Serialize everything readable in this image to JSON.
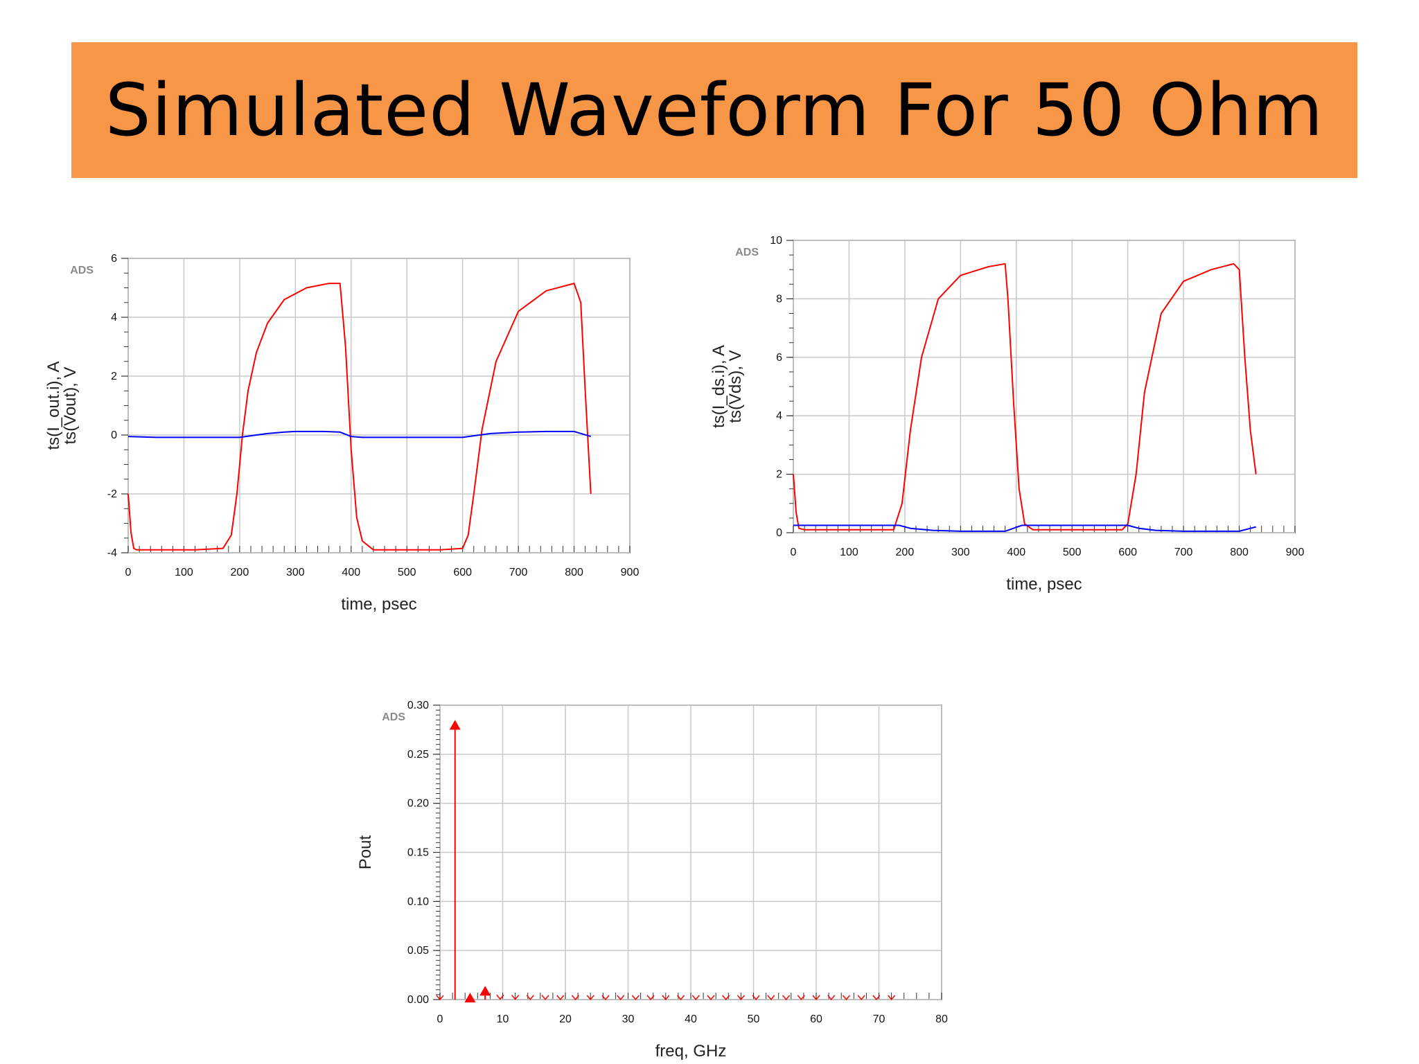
{
  "slide": {
    "title": "Simulated Waveform For 50 Ohm"
  },
  "colors": {
    "banner": "#f79646",
    "red": "#ff0000",
    "blue": "#0000ff",
    "grid": "#c8c8c8"
  },
  "chart_data": [
    {
      "type": "line",
      "ads_mark": "ADS",
      "xlabel": "time, psec",
      "ylabels": [
        {
          "text": "ts(I_out.i), A",
          "color": "#0000ff"
        },
        {
          "text": "ts(Vout), V",
          "color": "#ff0000"
        }
      ],
      "xlim": [
        0,
        900
      ],
      "ylim": [
        -4,
        6
      ],
      "xticks": [
        0,
        100,
        200,
        300,
        400,
        500,
        600,
        700,
        800,
        900
      ],
      "yticks": [
        -4,
        -2,
        0,
        2,
        4,
        6
      ],
      "series": [
        {
          "color": "#ff0000",
          "x": [
            0,
            5,
            10,
            15,
            25,
            60,
            120,
            170,
            185,
            195,
            205,
            215,
            230,
            250,
            280,
            320,
            360,
            380,
            390,
            400,
            410,
            420,
            440,
            500,
            560,
            600,
            610,
            620,
            635,
            660,
            700,
            750,
            800,
            812,
            820,
            830
          ],
          "y": [
            -2.0,
            -3.3,
            -3.85,
            -3.9,
            -3.9,
            -3.9,
            -3.9,
            -3.85,
            -3.4,
            -2.0,
            0.0,
            1.5,
            2.8,
            3.8,
            4.6,
            5.0,
            5.15,
            5.15,
            3.0,
            -0.5,
            -2.8,
            -3.6,
            -3.9,
            -3.9,
            -3.9,
            -3.85,
            -3.4,
            -2.0,
            0.2,
            2.5,
            4.2,
            4.9,
            5.15,
            4.5,
            1.5,
            -2.0
          ]
        },
        {
          "color": "#0000ff",
          "x": [
            0,
            50,
            100,
            150,
            200,
            230,
            250,
            280,
            300,
            350,
            380,
            400,
            420,
            450,
            500,
            550,
            600,
            630,
            650,
            700,
            750,
            800,
            830
          ],
          "y": [
            -0.05,
            -0.08,
            -0.08,
            -0.08,
            -0.08,
            0.0,
            0.05,
            0.1,
            0.12,
            0.12,
            0.1,
            -0.05,
            -0.08,
            -0.08,
            -0.08,
            -0.08,
            -0.08,
            0.0,
            0.05,
            0.1,
            0.12,
            0.12,
            -0.05
          ]
        }
      ]
    },
    {
      "type": "line",
      "ads_mark": "ADS",
      "xlabel": "time, psec",
      "ylabels": [
        {
          "text": "ts(I_ds.i), A",
          "color": "#0000ff"
        },
        {
          "text": "ts(Vds), V",
          "color": "#ff0000"
        }
      ],
      "xlim": [
        0,
        900
      ],
      "ylim": [
        0,
        10
      ],
      "xticks": [
        0,
        100,
        200,
        300,
        400,
        500,
        600,
        700,
        800,
        900
      ],
      "yticks": [
        0,
        2,
        4,
        6,
        8,
        10
      ],
      "series": [
        {
          "color": "#ff0000",
          "x": [
            0,
            5,
            10,
            20,
            100,
            180,
            195,
            210,
            230,
            260,
            300,
            350,
            380,
            385,
            395,
            405,
            415,
            430,
            500,
            590,
            600,
            615,
            630,
            660,
            700,
            750,
            790,
            800,
            810,
            820,
            830
          ],
          "y": [
            2.0,
            0.7,
            0.15,
            0.1,
            0.1,
            0.1,
            1.0,
            3.5,
            6.0,
            8.0,
            8.8,
            9.1,
            9.2,
            8.0,
            4.5,
            1.5,
            0.3,
            0.1,
            0.1,
            0.1,
            0.3,
            2.0,
            4.8,
            7.5,
            8.6,
            9.0,
            9.2,
            9.0,
            6.0,
            3.5,
            2.0
          ]
        },
        {
          "color": "#0000ff",
          "x": [
            0,
            10,
            50,
            100,
            150,
            190,
            210,
            250,
            300,
            350,
            380,
            410,
            450,
            500,
            550,
            600,
            620,
            650,
            700,
            750,
            800,
            830
          ],
          "y": [
            0.25,
            0.25,
            0.25,
            0.25,
            0.25,
            0.25,
            0.15,
            0.08,
            0.05,
            0.05,
            0.05,
            0.25,
            0.25,
            0.25,
            0.25,
            0.25,
            0.15,
            0.08,
            0.05,
            0.05,
            0.05,
            0.2
          ]
        }
      ]
    },
    {
      "type": "bar",
      "ads_mark": "ADS",
      "xlabel": "freq, GHz",
      "ylabel": "Pout",
      "xlim": [
        0,
        80
      ],
      "ylim": [
        0,
        0.3
      ],
      "xticks": [
        0,
        10,
        20,
        30,
        40,
        50,
        60,
        70,
        80
      ],
      "yticks": [
        "0.00",
        "0.05",
        "0.10",
        "0.15",
        "0.20",
        "0.25",
        "0.30"
      ],
      "color": "#ff0000",
      "x": [
        0,
        2.4,
        4.8,
        7.2,
        9.6,
        12.0,
        14.4,
        16.8,
        19.2,
        21.6,
        24.0,
        26.4,
        28.8,
        31.2,
        33.6,
        36.0,
        38.4,
        40.8,
        43.2,
        45.6,
        48.0,
        50.4,
        52.8,
        55.2,
        57.6,
        60.0,
        62.4,
        64.8,
        67.2,
        69.6,
        72.0
      ],
      "values": [
        0.0,
        0.28,
        0.002,
        0.009,
        0.0005,
        0.0003,
        0.0002,
        0.0002,
        0.0001,
        0.0001,
        0.0001,
        0.0001,
        0.0001,
        0.0001,
        0.0001,
        0.0001,
        0.0001,
        0.0001,
        0.0001,
        0.0001,
        0.0001,
        0.0001,
        0.0001,
        0.0001,
        0.0001,
        0.0001,
        0.0001,
        0.0001,
        0.0001,
        0.0001,
        0.0001
      ]
    }
  ]
}
